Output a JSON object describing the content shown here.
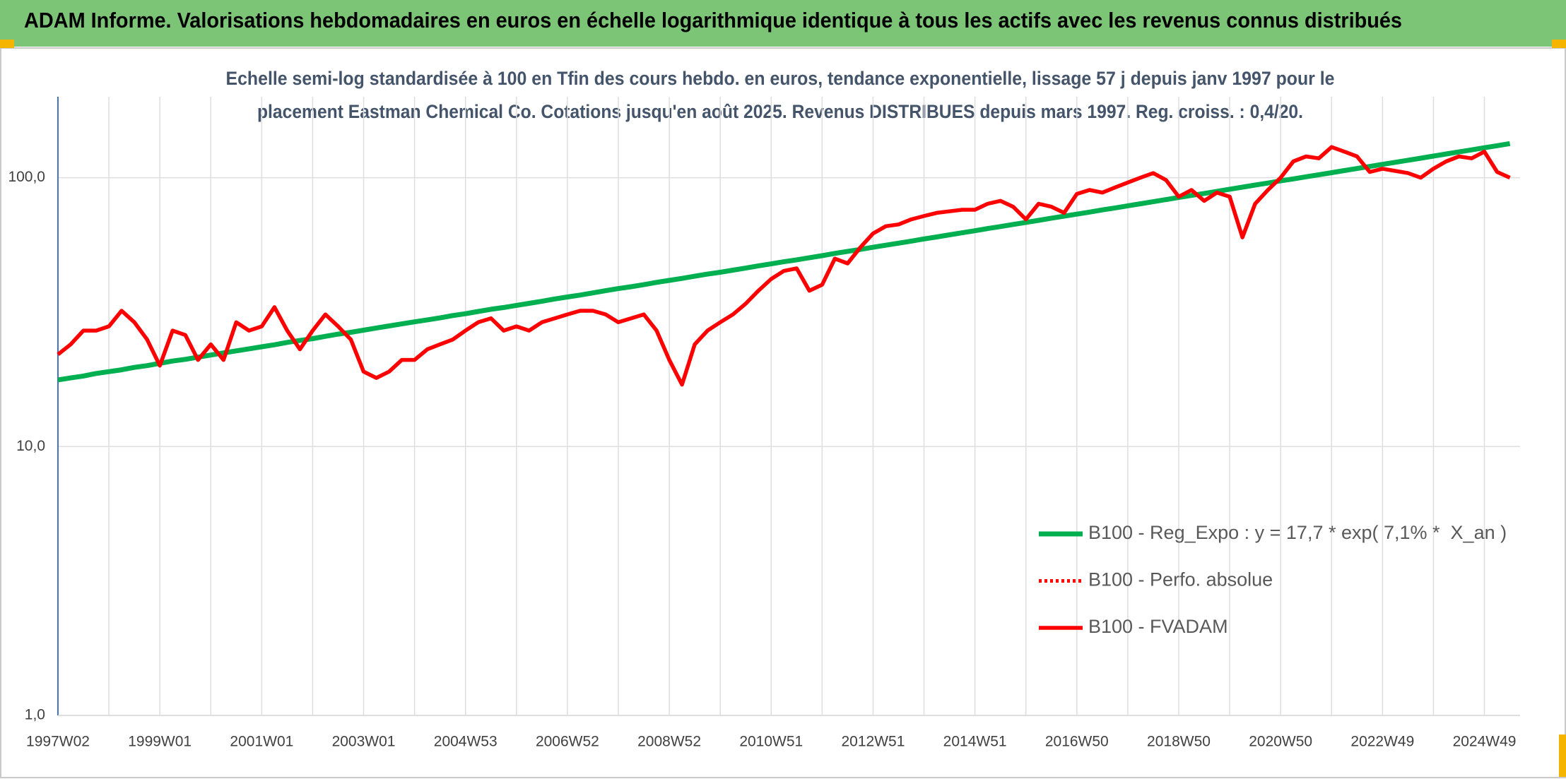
{
  "chart_data": {
    "type": "line",
    "title": "ADAM Informe. Valorisations hebdomadaires en euros en échelle logarithmique identique à tous les actifs avec les revenus connus distribués",
    "subtitle": [
      "Echelle semi-log standardisée à 100 en Tfin des cours hebdo. en euros, tendance exponentielle, lissage 57 j depuis janv 1997 pour le",
      "placement Eastman Chemical Co. Cotations jusqu'en août 2025. Revenus DISTRIBUES depuis mars 1997. Reg. croiss. : 0,4/20."
    ],
    "categories": [
      "1997W02",
      null,
      null,
      null,
      null,
      null,
      null,
      null,
      "1999W01",
      null,
      null,
      null,
      null,
      null,
      null,
      null,
      "2001W01",
      null,
      null,
      null,
      null,
      null,
      null,
      null,
      "2003W01",
      null,
      null,
      null,
      null,
      null,
      null,
      null,
      "2004W53",
      null,
      null,
      null,
      null,
      null,
      null,
      null,
      "2006W52",
      null,
      null,
      null,
      null,
      null,
      null,
      null,
      "2008W52",
      null,
      null,
      null,
      null,
      null,
      null,
      null,
      "2010W51",
      null,
      null,
      null,
      null,
      null,
      null,
      null,
      "2012W51",
      null,
      null,
      null,
      null,
      null,
      null,
      null,
      "2014W51",
      null,
      null,
      null,
      null,
      null,
      null,
      null,
      "2016W50",
      null,
      null,
      null,
      null,
      null,
      null,
      null,
      "2018W50",
      null,
      null,
      null,
      null,
      null,
      null,
      null,
      "2020W50",
      null,
      null,
      null,
      null,
      null,
      null,
      null,
      "2022W49",
      null,
      null,
      null,
      null,
      null,
      null,
      null,
      "2024W49",
      null,
      null
    ],
    "series": [
      {
        "name": "B100 - Reg_Expo : y = 17,7 * exp( 7,1% *  X_an )",
        "color": "#00b050",
        "width": 7,
        "values": [
          17.7,
          18.0,
          18.3,
          18.7,
          19.0,
          19.3,
          19.7,
          20.0,
          20.4,
          20.8,
          21.1,
          21.5,
          21.9,
          22.3,
          22.7,
          23.1,
          23.5,
          23.9,
          24.4,
          24.8,
          25.2,
          25.7,
          26.2,
          26.6,
          27.1,
          27.6,
          28.1,
          28.6,
          29.1,
          29.6,
          30.1,
          30.7,
          31.2,
          31.8,
          32.4,
          32.9,
          33.5,
          34.1,
          34.7,
          35.4,
          36.0,
          36.6,
          37.3,
          38.0,
          38.7,
          39.3,
          40.0,
          40.8,
          41.5,
          42.2,
          43.0,
          43.8,
          44.5,
          45.3,
          46.1,
          47.0,
          47.8,
          48.7,
          49.5,
          50.4,
          51.3,
          52.3,
          53.2,
          54.1,
          55.1,
          56.1,
          57.1,
          58.1,
          59.2,
          60.2,
          61.3,
          62.4,
          63.5,
          64.7,
          65.8,
          67.0,
          68.2,
          69.4,
          70.7,
          71.9,
          73.2,
          74.5,
          75.9,
          77.2,
          78.6,
          80.0,
          81.4,
          82.9,
          84.4,
          85.9,
          87.4,
          89.0,
          90.6,
          92.2,
          93.9,
          95.5,
          97.3,
          99.0,
          100.8,
          102.6,
          104.4,
          106.3,
          108.2,
          110.1,
          112.1,
          114.1,
          116.1,
          118.2,
          120.3,
          122.5,
          124.7,
          126.9,
          129.2,
          131.5,
          133.9
        ]
      },
      {
        "name": "B100 - Perfo. absolue",
        "color": "#ff0000",
        "width": 5,
        "dash": "dotted"
      },
      {
        "name": "B100 - FVADAM",
        "color": "#ff0000",
        "width": 5.5,
        "values": [
          22,
          24,
          27,
          27,
          28,
          32,
          29,
          25,
          20,
          27,
          26,
          21,
          24,
          21,
          29,
          27,
          28,
          33,
          27,
          23,
          27,
          31,
          28,
          25,
          19,
          18,
          19,
          21,
          21,
          23,
          24,
          25,
          27,
          29,
          30,
          27,
          28,
          27,
          29,
          30,
          31,
          32,
          32,
          31,
          29,
          30,
          31,
          27,
          21,
          17,
          24,
          27,
          29,
          31,
          34,
          38,
          42,
          45,
          46,
          38,
          40,
          50,
          48,
          55,
          62,
          66,
          67,
          70,
          72,
          74,
          75,
          76,
          76,
          80,
          82,
          78,
          70,
          80,
          78,
          74,
          87,
          90,
          88,
          92,
          96,
          100,
          104,
          98,
          85,
          90,
          82,
          88,
          85,
          60,
          80,
          90,
          100,
          115,
          120,
          118,
          130,
          125,
          120,
          105,
          108,
          106,
          104,
          100,
          108,
          115,
          120,
          118,
          125,
          105,
          100
        ]
      }
    ],
    "log_scale": true,
    "ylim": [
      1,
      200
    ],
    "yticks": [
      {
        "value": 1,
        "label": "1,0"
      },
      {
        "value": 10,
        "label": "10,0"
      },
      {
        "value": 100,
        "label": "100,0"
      }
    ],
    "grid": true,
    "legend": "lower right"
  }
}
